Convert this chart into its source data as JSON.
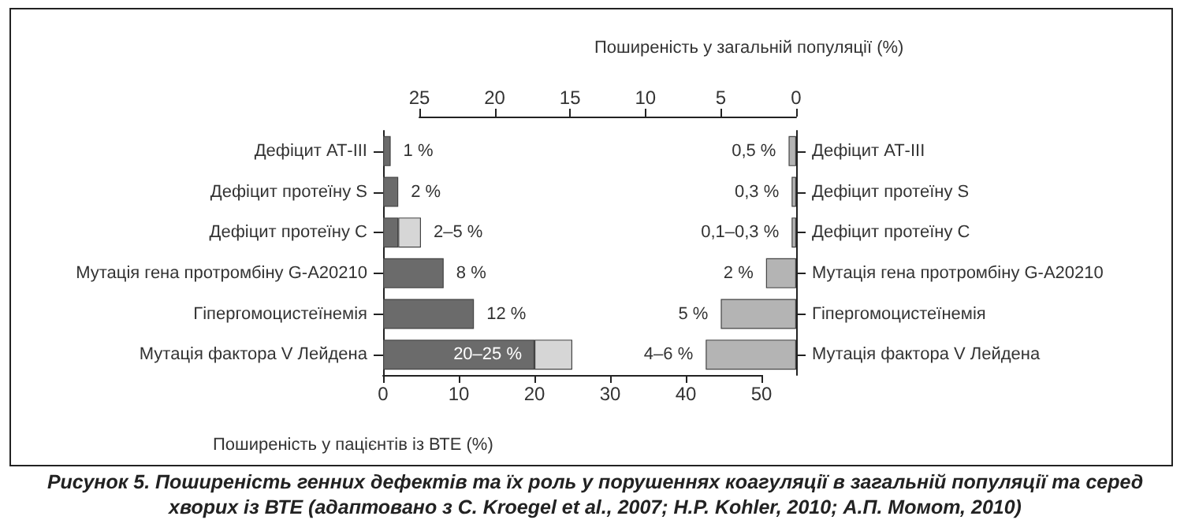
{
  "chart_data": [
    {
      "type": "bar",
      "orientation": "horizontal",
      "stacked": true,
      "categories": [
        "Дефіцит АТ-III",
        "Дефіцит протеїну S",
        "Дефіцит протеїну С",
        "Мутація гена протромбіну G-A20210",
        "Гіпергомоцистеїнемія",
        "Мутація фактора V Лейдена"
      ],
      "series": [
        {
          "color": "#6b6b6b",
          "values": [
            1,
            2,
            2,
            8,
            12,
            20
          ],
          "value_labels": [
            "1 %",
            "2 %",
            null,
            "8 %",
            "12 %",
            null
          ]
        },
        {
          "color": "#d6d6d6",
          "values": [
            null,
            null,
            3,
            null,
            null,
            5
          ]
        }
      ],
      "xlim": [
        0,
        50
      ],
      "xticks": [
        0,
        10,
        20,
        30,
        40,
        50
      ],
      "xlabel": "Поширеність у пацієнтів із ВТЕ (%)",
      "annotations": [
        {
          "text": "2–5 %",
          "x": 5,
          "y": "Дефіцит протеїну С"
        },
        {
          "text": "20–25 %",
          "x": 20,
          "y": "Мутація фактора V Лейдена"
        },
        "Рисунок 5. Поширеність генних дефектів та їх роль у порушеннях коагуляції в загальній популяції та серед хворих із ВТЕ (адаптовано з С. Kroegel et al., 2007; H.P. Kohler, 2010; А.П. Момот, 2010)"
      ]
    },
    {
      "type": "bar",
      "orientation": "horizontal",
      "categories": [
        "Дефіцит АТ-III",
        "Дефіцит протеїну S",
        "Дефіцит протеїну С",
        "Мутація гена протромбіну G-A20210",
        "Гіпергомоцистеїнемія",
        "Мутація фактора V Лейдена"
      ],
      "series": [
        {
          "color": "#b4b4b4",
          "values": [
            0.5,
            0.3,
            0.3,
            2,
            5,
            6
          ],
          "value_labels": [
            "0,5 %",
            "0,3 %",
            null,
            "2 %",
            "5 %",
            null
          ]
        }
      ],
      "annotations": [
        {
          "text": "0,1–0,3 %",
          "x": 0.3,
          "y": "Дефіцит протеїну С"
        },
        {
          "text": "4–6 %",
          "x": 6,
          "y": "Мутація фактора V Лейдена"
        }
      ],
      "xlim": [
        25,
        0
      ],
      "xticks": [
        25,
        20,
        15,
        10,
        5,
        0
      ],
      "xlabel": "Поширеність у загальній популяції (%)"
    }
  ]
}
